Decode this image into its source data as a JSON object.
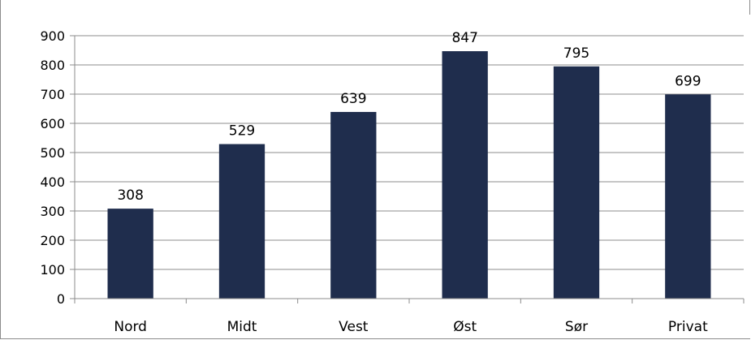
{
  "chart_data": {
    "type": "bar",
    "categories": [
      "Nord",
      "Midt",
      "Vest",
      "Øst",
      "Sør",
      "Privat"
    ],
    "values": [
      308,
      529,
      639,
      847,
      795,
      699
    ],
    "data_labels": [
      "308",
      "529",
      "639",
      "847",
      "795",
      "699"
    ],
    "y_ticks": [
      0,
      100,
      200,
      300,
      400,
      500,
      600,
      700,
      800,
      900
    ],
    "y_tick_labels": [
      "0",
      "100",
      "200",
      "300",
      "400",
      "500",
      "600",
      "700",
      "800",
      "900"
    ],
    "ylim": [
      0,
      900
    ],
    "grid": "horizontal",
    "legend": "none",
    "bar_color": "#1f2d4d",
    "grid_color": "#8c8c8c"
  }
}
